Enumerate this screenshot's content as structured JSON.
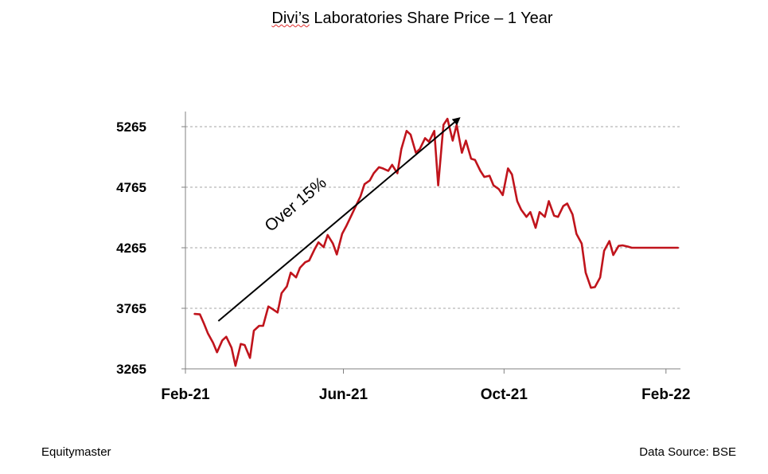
{
  "title_prefix": "Divi’s",
  "title_rest": " Laboratories Share Price – 1 Year",
  "footer_left": "Equitymaster",
  "footer_right": "Data Source: BSE",
  "annotation_text": "Over 15%",
  "colors": {
    "line": "#c0141c",
    "grid": "#a6a6a6",
    "axis": "#808080",
    "text": "#000000"
  },
  "chart_data": {
    "type": "line",
    "title": "Divi’s Laboratories Share Price – 1 Year",
    "xlabel": "",
    "ylabel": "",
    "x_ticks": [
      "Feb-21",
      "Jun-21",
      "Oct-21",
      "Feb-22"
    ],
    "y_ticks": [
      3265,
      3765,
      4265,
      4765,
      5265
    ],
    "ylim": [
      3265,
      5390
    ],
    "xlim": [
      "2021-02-01",
      "2022-02-12"
    ],
    "grid": "horizontal-dashed",
    "annotations": [
      {
        "text": "Over 15%",
        "type": "arrow",
        "from": [
          "2021-02-26",
          3660
        ],
        "to": [
          "2021-08-28",
          5335
        ]
      }
    ],
    "series": [
      {
        "x": [
          "2021-02-08",
          "2021-02-12",
          "2021-02-15",
          "2021-02-18",
          "2021-02-22",
          "2021-02-25",
          "2021-03-01",
          "2021-03-04",
          "2021-03-08",
          "2021-03-11",
          "2021-03-15",
          "2021-03-18",
          "2021-03-22",
          "2021-03-25",
          "2021-03-29",
          "2021-04-01",
          "2021-04-05",
          "2021-04-08",
          "2021-04-12",
          "2021-04-15",
          "2021-04-19",
          "2021-04-22",
          "2021-04-26",
          "2021-04-29",
          "2021-05-03",
          "2021-05-06",
          "2021-05-10",
          "2021-05-13",
          "2021-05-17",
          "2021-05-20",
          "2021-05-24",
          "2021-05-27",
          "2021-05-31",
          "2021-06-03",
          "2021-06-07",
          "2021-06-10",
          "2021-06-14",
          "2021-06-17",
          "2021-06-21",
          "2021-06-24",
          "2021-06-28",
          "2021-07-01",
          "2021-07-05",
          "2021-07-08",
          "2021-07-12",
          "2021-07-15",
          "2021-07-19",
          "2021-07-22",
          "2021-07-26",
          "2021-07-29",
          "2021-08-02",
          "2021-08-05",
          "2021-08-09",
          "2021-08-12",
          "2021-08-16",
          "2021-08-19",
          "2021-08-23",
          "2021-08-26",
          "2021-08-30",
          "2021-09-02",
          "2021-09-06",
          "2021-09-09",
          "2021-09-13",
          "2021-09-16",
          "2021-09-20",
          "2021-09-23",
          "2021-09-27",
          "2021-09-30",
          "2021-10-04",
          "2021-10-07",
          "2021-10-11",
          "2021-10-14",
          "2021-10-18",
          "2021-10-21",
          "2021-10-25",
          "2021-10-28",
          "2021-11-01",
          "2021-11-04",
          "2021-11-08",
          "2021-11-11",
          "2021-11-15",
          "2021-11-18",
          "2021-11-22",
          "2021-11-25",
          "2021-11-29",
          "2021-12-02",
          "2021-12-06",
          "2021-12-09",
          "2021-12-13",
          "2021-12-16",
          "2021-12-20",
          "2021-12-23",
          "2021-12-27",
          "2021-12-30",
          "2022-01-03",
          "2022-01-06",
          "2022-01-10",
          "2022-01-13",
          "2022-01-17",
          "2022-01-20",
          "2022-01-24",
          "2022-01-27",
          "2022-01-31",
          "2022-02-03",
          "2022-02-07",
          "2022-02-10"
        ],
        "values": [
          3718,
          3715,
          3640,
          3560,
          3480,
          3402,
          3500,
          3530,
          3440,
          3290,
          3470,
          3462,
          3355,
          3580,
          3620,
          3620,
          3780,
          3760,
          3730,
          3890,
          3945,
          4060,
          4020,
          4100,
          4145,
          4160,
          4250,
          4310,
          4270,
          4370,
          4300,
          4210,
          4380,
          4440,
          4530,
          4600,
          4690,
          4790,
          4820,
          4880,
          4930,
          4920,
          4900,
          4950,
          4880,
          5080,
          5230,
          5200,
          5050,
          5080,
          5170,
          5140,
          5230,
          4780,
          5280,
          5330,
          5150,
          5280,
          5050,
          5150,
          5000,
          4990,
          4900,
          4850,
          4860,
          4780,
          4750,
          4700,
          4920,
          4870,
          4650,
          4580,
          4520,
          4560,
          4430,
          4560,
          4520,
          4650,
          4530,
          4520,
          4610,
          4630,
          4540,
          4380,
          4300,
          4060,
          3935,
          3940,
          4020,
          4240,
          4320,
          4205,
          4280,
          4285,
          4275,
          4265,
          4265,
          4265,
          4265,
          4265,
          4265,
          4265,
          4265,
          4265,
          4265,
          4265
        ],
        "color": "#c0141c"
      }
    ]
  }
}
